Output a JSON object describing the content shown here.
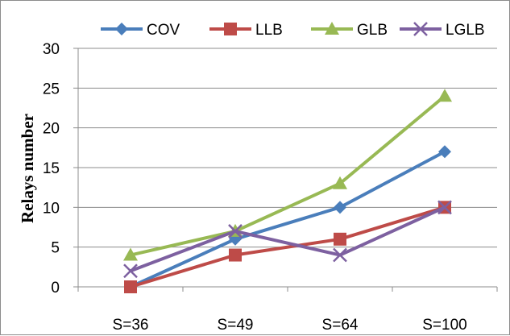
{
  "chart_data": {
    "type": "line",
    "categories": [
      "S=36",
      "S=49",
      "S=64",
      "S=100"
    ],
    "series": [
      {
        "name": "COV",
        "values": [
          0,
          6,
          10,
          17
        ],
        "color": "#4a7ebb",
        "marker": "diamond"
      },
      {
        "name": "LLB",
        "values": [
          0,
          4,
          6,
          10
        ],
        "color": "#be4b48",
        "marker": "square"
      },
      {
        "name": "GLB",
        "values": [
          4,
          7,
          13,
          24
        ],
        "color": "#98b954",
        "marker": "triangle"
      },
      {
        "name": "LGLB",
        "values": [
          2,
          7,
          4,
          10
        ],
        "color": "#7d60a0",
        "marker": "x"
      }
    ],
    "ylabel": "Relays number",
    "xlabel": "",
    "ylim": [
      0,
      30
    ],
    "yticks": [
      0,
      5,
      10,
      15,
      20,
      25,
      30
    ],
    "grid": true,
    "legend_position": "top"
  }
}
